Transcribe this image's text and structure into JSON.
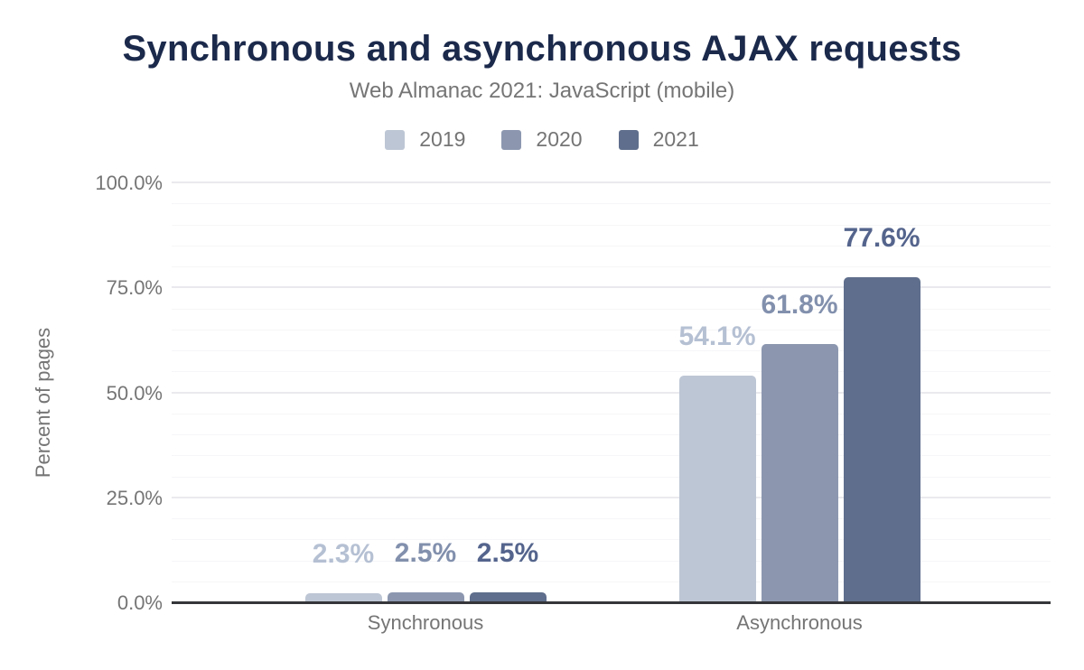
{
  "chart_data": {
    "type": "bar",
    "title": "Synchronous and asynchronous AJAX requests",
    "subtitle": "Web Almanac 2021: JavaScript (mobile)",
    "ylabel": "Percent of pages",
    "xlabel": "",
    "ylim": [
      0,
      100
    ],
    "yticks": [
      {
        "value": 0,
        "label": "0.0%"
      },
      {
        "value": 25,
        "label": "25.0%"
      },
      {
        "value": 50,
        "label": "50.0%"
      },
      {
        "value": 75,
        "label": "75.0%"
      },
      {
        "value": 100,
        "label": "100.0%"
      }
    ],
    "grid": {
      "on": true,
      "minor_step": 5,
      "major_step": 25
    },
    "legend_position": "top",
    "categories": [
      "Synchronous",
      "Asynchronous"
    ],
    "series": [
      {
        "name": "2019",
        "color": "#bdc6d4",
        "label_color": "#b5c0d3",
        "values": [
          2.3,
          54.1
        ],
        "labels": [
          "2.3%",
          "54.1%"
        ]
      },
      {
        "name": "2020",
        "color": "#8c97af",
        "label_color": "#8290ad",
        "values": [
          2.5,
          61.8
        ],
        "labels": [
          "2.5%",
          "61.8%"
        ]
      },
      {
        "name": "2021",
        "color": "#5f6e8c",
        "label_color": "#54648c",
        "values": [
          2.5,
          77.6
        ],
        "labels": [
          "2.5%",
          "77.6%"
        ]
      }
    ],
    "colors": {
      "title": "#1b294b",
      "muted_text": "#757575",
      "axis_line": "#35363a",
      "gridline_minor": "#f6f6f8",
      "gridline_major": "#eaeaee",
      "background": "#ffffff"
    }
  }
}
